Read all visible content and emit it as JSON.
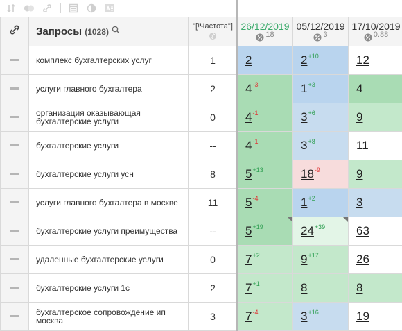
{
  "header": {
    "queries_label": "Запросы",
    "queries_count": "(1028)",
    "freq_label": "\"[!Частота\"]"
  },
  "dates": [
    {
      "label": "26/12/2019",
      "sub": "18",
      "active": true
    },
    {
      "label": "05/12/2019",
      "sub": "3",
      "active": false
    },
    {
      "label": "17/10/2019",
      "sub": "0.88",
      "active": false
    }
  ],
  "colors": {
    "blue": "#b9d4ee",
    "green": "#a9dcb4",
    "light_green": "#c3e8cb",
    "red": "#f7dcdc",
    "up": "#2f9f52",
    "down": "#e03434"
  },
  "rows": [
    {
      "query": "комплекс бухгалтерских услуг",
      "freq": "1",
      "cells": [
        {
          "v": "2",
          "d": "",
          "dir": "",
          "bg": "blue"
        },
        {
          "v": "2",
          "d": "+10",
          "dir": "up",
          "bg": "blue"
        },
        {
          "v": "12",
          "d": "",
          "dir": "",
          "bg": "white"
        }
      ]
    },
    {
      "query": "услуги главного бухгалтера",
      "freq": "2",
      "cells": [
        {
          "v": "4",
          "d": "-3",
          "dir": "down",
          "bg": "green"
        },
        {
          "v": "1",
          "d": "+3",
          "dir": "up",
          "bg": "blue"
        },
        {
          "v": "4",
          "d": "",
          "dir": "",
          "bg": "green"
        }
      ]
    },
    {
      "query": "организация оказывающая бухгалтерские услуги",
      "freq": "0",
      "cells": [
        {
          "v": "4",
          "d": "-1",
          "dir": "down",
          "bg": "green"
        },
        {
          "v": "3",
          "d": "+6",
          "dir": "up",
          "bg": "lblue"
        },
        {
          "v": "9",
          "d": "",
          "dir": "",
          "bg": "lgreen"
        }
      ]
    },
    {
      "query": "бухгалтерские услуги",
      "freq": "--",
      "cells": [
        {
          "v": "4",
          "d": "-1",
          "dir": "down",
          "bg": "green"
        },
        {
          "v": "3",
          "d": "+8",
          "dir": "up",
          "bg": "lblue"
        },
        {
          "v": "11",
          "d": "",
          "dir": "",
          "bg": "white"
        }
      ]
    },
    {
      "query": "бухгалтерские услуги усн",
      "freq": "8",
      "cells": [
        {
          "v": "5",
          "d": "+13",
          "dir": "up",
          "bg": "green"
        },
        {
          "v": "18",
          "d": "-9",
          "dir": "down",
          "bg": "red"
        },
        {
          "v": "9",
          "d": "",
          "dir": "",
          "bg": "lgreen"
        }
      ]
    },
    {
      "query": "услуги главного бухгалтера в москве",
      "freq": "11",
      "cells": [
        {
          "v": "5",
          "d": "-4",
          "dir": "down",
          "bg": "green"
        },
        {
          "v": "1",
          "d": "+2",
          "dir": "up",
          "bg": "blue"
        },
        {
          "v": "3",
          "d": "",
          "dir": "",
          "bg": "lblue"
        }
      ]
    },
    {
      "query": "бухгалтерские услуги преимущества",
      "freq": "--",
      "cells": [
        {
          "v": "5",
          "d": "+19",
          "dir": "up",
          "bg": "green",
          "corner": true
        },
        {
          "v": "24",
          "d": "+39",
          "dir": "up",
          "bg": "pale",
          "corner": true
        },
        {
          "v": "63",
          "d": "",
          "dir": "",
          "bg": "white"
        }
      ]
    },
    {
      "query": "удаленные бухгалтерские услуги",
      "freq": "0",
      "cells": [
        {
          "v": "7",
          "d": "+2",
          "dir": "up",
          "bg": "lgreen"
        },
        {
          "v": "9",
          "d": "+17",
          "dir": "up",
          "bg": "lgreen"
        },
        {
          "v": "26",
          "d": "",
          "dir": "",
          "bg": "white"
        }
      ]
    },
    {
      "query": "бухгалтерские услуги 1с",
      "freq": "2",
      "cells": [
        {
          "v": "7",
          "d": "+1",
          "dir": "up",
          "bg": "lgreen"
        },
        {
          "v": "8",
          "d": "",
          "dir": "",
          "bg": "lgreen"
        },
        {
          "v": "8",
          "d": "",
          "dir": "",
          "bg": "lgreen"
        }
      ]
    },
    {
      "query": "бухгалтерское сопровождение ип москва",
      "freq": "3",
      "cells": [
        {
          "v": "7",
          "d": "-4",
          "dir": "down",
          "bg": "lgreen"
        },
        {
          "v": "3",
          "d": "+16",
          "dir": "up",
          "bg": "lblue"
        },
        {
          "v": "19",
          "d": "",
          "dir": "",
          "bg": "white"
        }
      ]
    }
  ]
}
